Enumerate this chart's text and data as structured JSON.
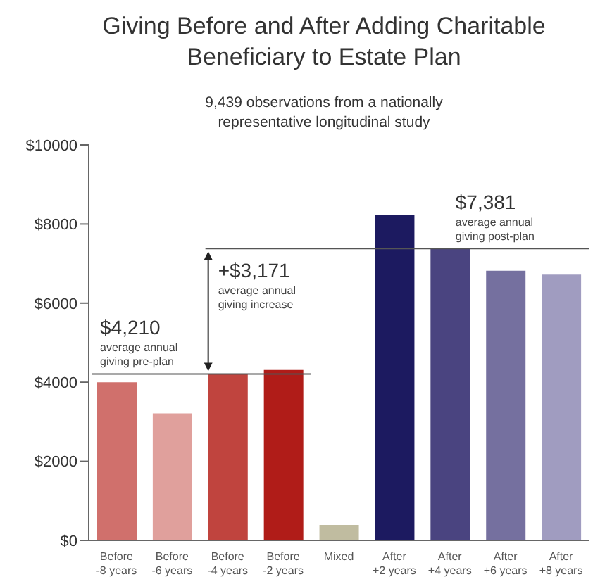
{
  "chart_data": {
    "type": "bar",
    "title": "Giving Before and After Adding Charitable Beneficiary to Estate Plan",
    "subtitle": "9,439 observations from a nationally representative longitudinal study",
    "categories": [
      "Before -8 years",
      "Before -6 years",
      "Before -4 years",
      "Before -2 years",
      "Mixed",
      "After +2 years",
      "After +4 years",
      "After +6 years",
      "After +8 years"
    ],
    "values": [
      4000,
      3210,
      4210,
      4310,
      390,
      8240,
      7390,
      6820,
      6720
    ],
    "colors": [
      "#d0706c",
      "#e0a09c",
      "#c0443e",
      "#b01c18",
      "#c0bca0",
      "#1c1a60",
      "#4a4480",
      "#75709f",
      "#a09cc0"
    ],
    "ylim": [
      0,
      10000
    ],
    "yticks": [
      {
        "value": 0,
        "label": "$0"
      },
      {
        "value": 2000,
        "label": "$2000"
      },
      {
        "value": 4000,
        "label": "$4000"
      },
      {
        "value": 6000,
        "label": "$6000"
      },
      {
        "value": 8000,
        "label": "$8000"
      },
      {
        "value": 10000,
        "label": "$10000"
      }
    ],
    "grid": false,
    "legend": false,
    "ref_lines": [
      {
        "axis": "y",
        "value": 4210,
        "label": "$4,210",
        "color": "#555555"
      },
      {
        "axis": "y",
        "value": 7381,
        "label": "$7,381",
        "color": "#555555"
      }
    ],
    "annotations": [
      "average annual giving pre-plan",
      {
        "text": "+$3,171",
        "y": 7381
      },
      "average annual giving increase",
      "average annual giving post-plan"
    ]
  }
}
